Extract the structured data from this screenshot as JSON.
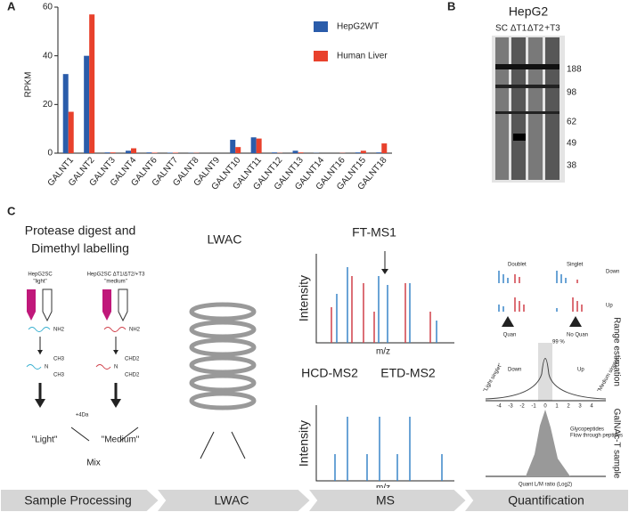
{
  "chart_data": {
    "type": "bar",
    "panel_label": "A",
    "y_label": "RPKM",
    "categories": [
      "GALNT1",
      "GALNT2",
      "GALNT3",
      "GALNT4",
      "GALNT6",
      "GALNT7",
      "GALNT8",
      "GALNT9",
      "GALNT10",
      "GALNT11",
      "GALNT12",
      "GALNT13",
      "GALNT14",
      "GALNT16",
      "GALNT15",
      "GALNT18"
    ],
    "series": [
      {
        "name": "HepG2WT",
        "color": "#2a5caa",
        "values": [
          32.5,
          40,
          0.3,
          1,
          0.3,
          0.2,
          0.1,
          0,
          5.5,
          6.5,
          0.3,
          1,
          0.1,
          0,
          0.3,
          0.3
        ]
      },
      {
        "name": "Human Liver",
        "color": "#e8412c",
        "values": [
          17,
          57,
          0.3,
          2,
          0.2,
          0.2,
          0.1,
          0,
          2.5,
          6,
          0.1,
          0.3,
          0,
          0.1,
          1,
          4
        ]
      }
    ],
    "ylim": [
      0,
      60
    ],
    "yticks": [
      0,
      20,
      40,
      60
    ]
  },
  "panel_b": {
    "label": "B",
    "title": "HepG2",
    "lanes": [
      "SC",
      "ΔT1",
      "ΔT2",
      "+T3"
    ],
    "markers": [
      "188",
      "98",
      "62",
      "49",
      "38"
    ]
  },
  "panel_c": {
    "label": "C",
    "step1_title": [
      "Protease digest and",
      "Dimethyl labelling"
    ],
    "light_sample": [
      "HepG2SC",
      "\"light\""
    ],
    "medium_sample": [
      "HepG2SC ΔT1/ΔT2/+T3",
      "\"medium\""
    ],
    "nh2": "NH2",
    "n": "N",
    "ch3": "CH3",
    "chd2": "CHD2",
    "shift": "+4Da",
    "light": "\"Light\"",
    "medium": "\"Medium\"",
    "mix": "Mix",
    "lwac": "LWAC",
    "ft_ms1": "FT-MS1",
    "hcd": "HCD-MS2",
    "etd": "ETD-MS2",
    "intensity": "Intensity",
    "mz": "m/z",
    "doublet": "Doublet",
    "singlet": "Singlet",
    "down": "Down",
    "up": "Up",
    "quan": "Quan",
    "no_quan": "No Quan",
    "range_estimation": "Range estimation",
    "percent": "99 %",
    "galnac": "GalNAc-T sample",
    "light_singlet": "\"Light singlet\"",
    "medium_singlet": "\"Medium singlet\"",
    "legend": [
      "Glycopeptides",
      "Flow through peptides"
    ],
    "ratio_label": "Quant L/M ratio (Log2)",
    "ratio_ticks": [
      "-4",
      "-3",
      "-2",
      "-1",
      "0",
      "1",
      "2",
      "3",
      "4"
    ]
  },
  "workflow": [
    "Sample Processing",
    "LWAC",
    "MS",
    "Quantification"
  ]
}
